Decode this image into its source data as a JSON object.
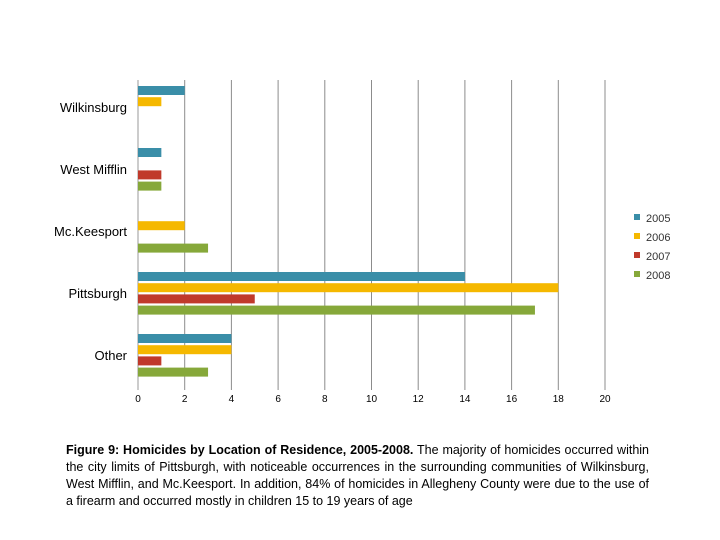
{
  "chart_data": {
    "type": "bar",
    "orientation": "horizontal",
    "categories": [
      "Wilkinsburg",
      "West Mifflin",
      "Mc.Keesport",
      "Pittsburgh",
      "Other"
    ],
    "series": [
      {
        "name": "2005",
        "color": "#3a8ea8",
        "values": [
          2,
          1,
          0,
          14,
          4
        ]
      },
      {
        "name": "2006",
        "color": "#f5b800",
        "values": [
          1,
          0,
          2,
          18,
          4
        ]
      },
      {
        "name": "2007",
        "color": "#c0392b",
        "values": [
          0,
          1,
          0,
          5,
          1
        ]
      },
      {
        "name": "2008",
        "color": "#86a83a",
        "values": [
          0,
          1,
          3,
          17,
          3
        ]
      }
    ],
    "xlim": [
      0,
      20
    ],
    "xticks": [
      "0",
      "2",
      "4",
      "6",
      "8",
      "10",
      "12",
      "14",
      "16",
      "18",
      "20"
    ],
    "grid": true,
    "legend_position": "right"
  },
  "caption": {
    "title": "Figure 9: Homicides by Location of Residence, 2005-2008.",
    "body": "The majority of homicides occurred within the city limits of Pittsburgh, with noticeable occurrences in the surrounding communities of Wilkinsburg, West Mifflin, and Mc.Keesport. In addition, 84% of homicides in Allegheny County were due to the use of a firearm and occurred mostly in children 15 to 19 years of age"
  }
}
